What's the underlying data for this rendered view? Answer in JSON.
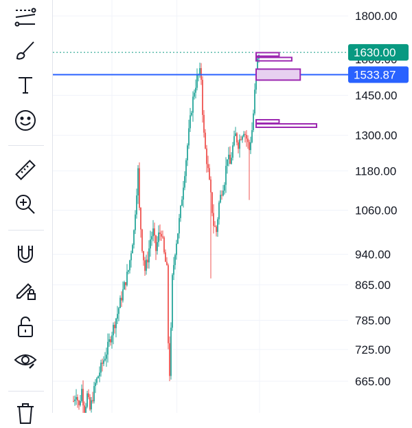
{
  "toolbar": {
    "items": [
      {
        "name": "trend-lines-icon"
      },
      {
        "name": "brush-icon"
      },
      {
        "name": "text-icon"
      },
      {
        "name": "emoji-icon"
      },
      {
        "name": "ruler-icon"
      },
      {
        "name": "zoom-in-icon"
      },
      {
        "name": "magnet-icon"
      },
      {
        "name": "lock-drawings-icon"
      },
      {
        "name": "unlock-icon"
      },
      {
        "name": "eye-icon"
      },
      {
        "name": "trash-icon"
      }
    ]
  },
  "colors": {
    "up": "#26a69a",
    "down": "#ef5350",
    "horizontal_line": "#2962ff",
    "last_price_badge": "#089981",
    "line_badge": "#2962ff",
    "volume_profile": "#9c27b0"
  },
  "chart_data": {
    "type": "candlestick",
    "title": "",
    "price_axis_ticks": [
      "1800.00",
      "1630.00",
      "1533.87",
      "1450.00",
      "1300.00",
      "1180.00",
      "1060.00",
      "940.00",
      "865.00",
      "785.00",
      "725.00",
      "665.00"
    ],
    "tick_values": [
      1800,
      1450,
      1300,
      1180,
      1060,
      940,
      865,
      785,
      725,
      665
    ],
    "scale": "log",
    "ylim": [
      610,
      1880
    ],
    "last_price": {
      "value": 1630.0,
      "label": "1630.00"
    },
    "horizontal_line": {
      "value": 1533.87,
      "label": "1533.87"
    },
    "overlay_row_value": 1600,
    "volume_profile_bars": [
      {
        "price": 1621,
        "relative_size": 0.38
      },
      {
        "price": 1600,
        "relative_size": 0.59
      },
      {
        "price": 1534,
        "relative_size": 0.73
      },
      {
        "price": 1350,
        "relative_size": 0.38
      },
      {
        "price": 1335,
        "relative_size": 1.0
      }
    ],
    "price_path": [
      [
        0,
        630
      ],
      [
        2,
        645
      ],
      [
        4,
        620
      ],
      [
        6,
        650
      ],
      [
        8,
        612
      ],
      [
        10,
        640
      ],
      [
        12,
        615
      ],
      [
        16,
        660
      ],
      [
        20,
        690
      ],
      [
        24,
        720
      ],
      [
        28,
        760
      ],
      [
        32,
        800
      ],
      [
        36,
        850
      ],
      [
        40,
        900
      ],
      [
        42,
        950
      ],
      [
        44,
        1000
      ],
      [
        46,
        1120
      ],
      [
        47,
        1180
      ],
      [
        48,
        1060
      ],
      [
        50,
        960
      ],
      [
        52,
        900
      ],
      [
        54,
        930
      ],
      [
        56,
        980
      ],
      [
        58,
        1000
      ],
      [
        60,
        950
      ],
      [
        62,
        990
      ],
      [
        64,
        1000
      ],
      [
        66,
        940
      ],
      [
        68,
        900
      ],
      [
        69,
        740
      ],
      [
        70,
        680
      ],
      [
        71,
        760
      ],
      [
        72,
        880
      ],
      [
        74,
        950
      ],
      [
        76,
        1000
      ],
      [
        78,
        1060
      ],
      [
        80,
        1140
      ],
      [
        82,
        1220
      ],
      [
        84,
        1310
      ],
      [
        86,
        1400
      ],
      [
        88,
        1470
      ],
      [
        90,
        1520
      ],
      [
        92,
        1540
      ],
      [
        93,
        1520
      ],
      [
        94,
        1390
      ],
      [
        95,
        1300
      ],
      [
        96,
        1250
      ],
      [
        98,
        1180
      ],
      [
        100,
        1100
      ],
      [
        102,
        1020
      ],
      [
        104,
        1000
      ],
      [
        106,
        1080
      ],
      [
        108,
        1120
      ],
      [
        110,
        1150
      ],
      [
        112,
        1230
      ],
      [
        114,
        1200
      ],
      [
        116,
        1260
      ],
      [
        118,
        1300
      ],
      [
        120,
        1270
      ],
      [
        122,
        1300
      ],
      [
        124,
        1320
      ],
      [
        126,
        1290
      ],
      [
        128,
        1250
      ],
      [
        130,
        1320
      ],
      [
        131,
        1380
      ],
      [
        132,
        1460
      ],
      [
        133,
        1530
      ],
      [
        134,
        1590
      ],
      [
        135,
        1630
      ]
    ],
    "outlier_wicks": [
      {
        "index": 70,
        "low": 665
      },
      {
        "index": 100,
        "low": 880
      },
      {
        "index": 128,
        "low": 1090
      }
    ]
  }
}
